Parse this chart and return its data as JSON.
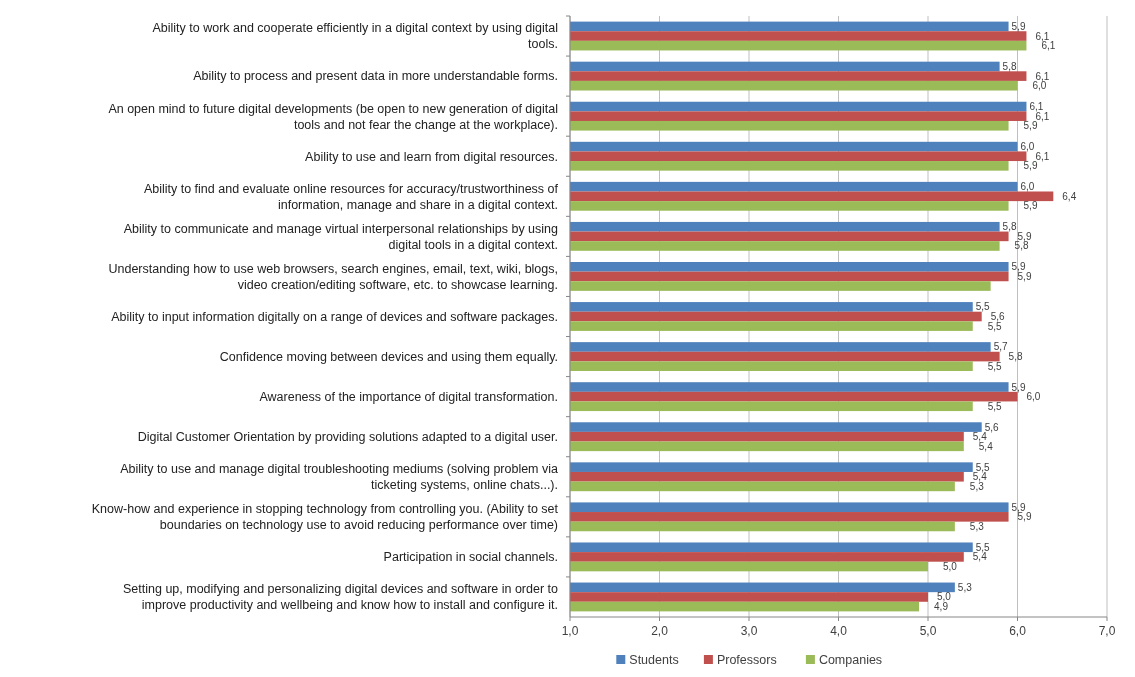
{
  "chart_data": {
    "type": "bar",
    "orientation": "horizontal",
    "categories": [
      "Ability to work and cooperate efficiently in a digital context by using digital tools.",
      "Ability to process and present data in more understandable forms.",
      "An open mind to future digital developments (be open to new generation of digital tools and not fear the change at the workplace).",
      "Ability to use and learn from digital resources.",
      "Ability to find and evaluate online resources for accuracy/trustworthiness of information, manage and share in a digital context.",
      "Ability to communicate and manage virtual interpersonal relationships by using digital tools in a digital context.",
      "Understanding how to use web browsers, search engines, email, text, wiki, blogs, video creation/editing software, etc. to showcase learning.",
      "Ability to input information digitally on a range of devices and software packages.",
      "Confidence moving between devices and using them equally.",
      "Awareness of the importance of digital transformation.",
      "Digital Customer Orientation by providing solutions adapted to a digital user.",
      "Ability to use and manage digital troubleshooting mediums (solving problem via ticketing systems, online chats...).",
      "Know-how and experience in stopping technology from controlling you. (Ability to set boundaries on technology use to avoid reducing performance over time)",
      "Participation in social channels.",
      "Setting up, modifying and personalizing digital devices and software in order to improve productivity and wellbeing and know how to install and configure it."
    ],
    "series": [
      {
        "name": "Students",
        "color": "#4f81bd",
        "values": [
          5.9,
          5.8,
          6.1,
          6.0,
          6.0,
          5.8,
          5.9,
          5.5,
          5.7,
          5.9,
          5.6,
          5.5,
          5.9,
          5.5,
          5.3
        ],
        "value_labels": [
          "5,9",
          "5,8",
          "6,1",
          "6,0",
          "6,0",
          "5,8",
          "5,9",
          "5,5",
          "5,7",
          "5,9",
          "5,6",
          "5,5",
          "5,9",
          "5,5",
          "5,3"
        ]
      },
      {
        "name": "Professors",
        "color": "#c0504d",
        "values": [
          6.1,
          6.1,
          6.1,
          6.1,
          6.4,
          5.9,
          5.9,
          5.6,
          5.8,
          6.0,
          5.4,
          5.4,
          5.9,
          5.4,
          5.0
        ],
        "value_labels": [
          "6,1",
          "6,1",
          "6,1",
          "6,1",
          "6,4",
          "5,9",
          "5,9",
          "5,6",
          "5,8",
          "6,0",
          "5,4",
          "5,4",
          "5,9",
          "5,4",
          "5,0"
        ]
      },
      {
        "name": "Companies",
        "color": "#9bbb59",
        "values": [
          6.1,
          6.0,
          5.9,
          5.9,
          5.9,
          5.8,
          5.7,
          5.5,
          5.5,
          5.5,
          5.4,
          5.3,
          5.3,
          5.0,
          4.9
        ],
        "value_labels": [
          "6,1",
          "6,0",
          "5,9",
          "5,9",
          "5,9",
          "5,8",
          null,
          "5,5",
          "5,5",
          "5,5",
          "5,4",
          "5,3",
          "5,3",
          "5,0",
          "4,9"
        ]
      }
    ],
    "xlim": [
      1,
      7
    ],
    "xticks": [
      {
        "value": 1,
        "label": "1,0"
      },
      {
        "value": 2,
        "label": "2,0"
      },
      {
        "value": 3,
        "label": "3,0"
      },
      {
        "value": 4,
        "label": "4,0"
      },
      {
        "value": 5,
        "label": "5,0"
      },
      {
        "value": 6,
        "label": "6,0"
      },
      {
        "value": 7,
        "label": "7,0"
      }
    ],
    "grid": "x",
    "legend": "bottom"
  }
}
